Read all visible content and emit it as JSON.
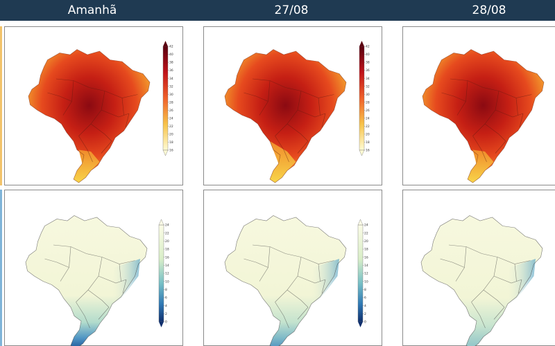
{
  "header": {
    "columns": [
      "Amanhã",
      "27/08",
      "28/08"
    ]
  },
  "temperature_maps": {
    "colorbar_ticks": [
      "42",
      "40",
      "38",
      "36",
      "34",
      "32",
      "30",
      "28",
      "26",
      "24",
      "22",
      "20",
      "18",
      "16"
    ],
    "colors": {
      "hot": "#8b0a12",
      "warm": "#e03a1c",
      "mild": "#f6a52a",
      "cool": "#f8e66c"
    }
  },
  "humidity_maps": {
    "colorbar_ticks": [
      "24",
      "22",
      "20",
      "18",
      "16",
      "14",
      "12",
      "10",
      "8",
      "6",
      "4",
      "2",
      "0"
    ],
    "colors": {
      "low": "#f6f7d9",
      "mid": "#7ec3c9",
      "high": "#1a4a8a"
    }
  },
  "accent": {
    "header_bg": "#1f3a52",
    "left_strip_top": "#f2c36b",
    "left_strip_bottom": "#7fb4d8",
    "dark_right_edge": "#1b1b1b"
  }
}
